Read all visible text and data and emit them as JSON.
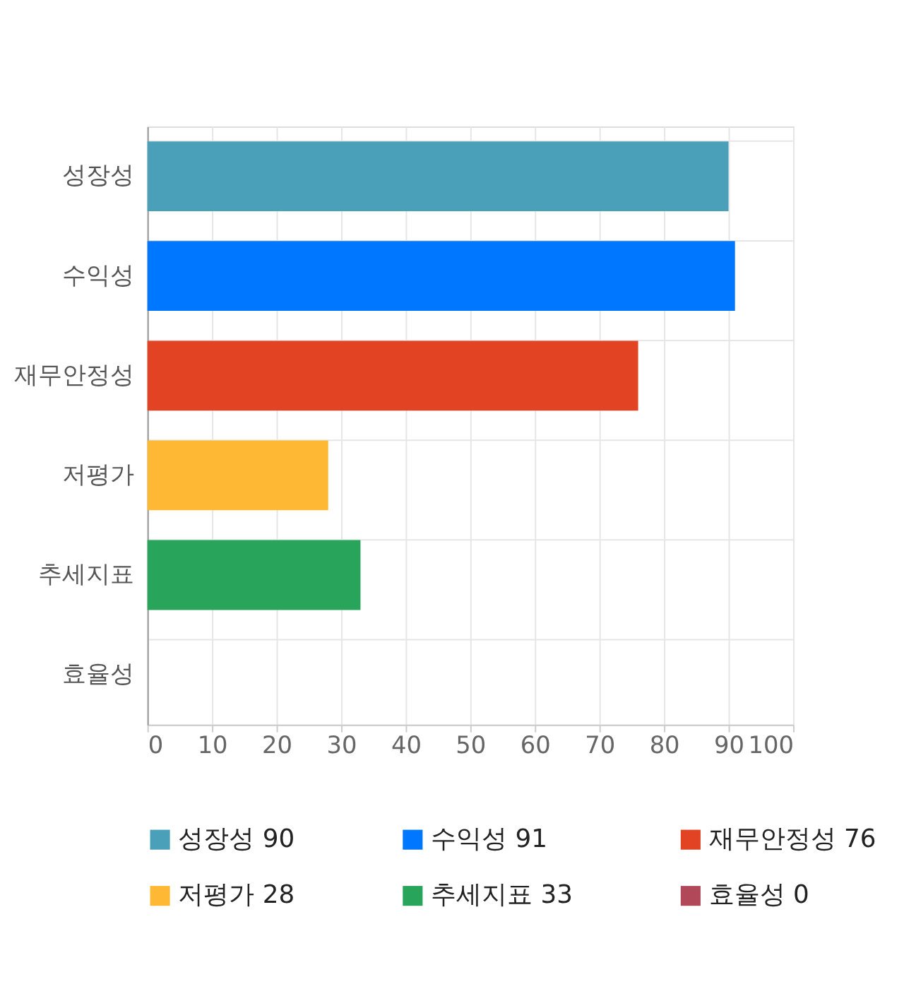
{
  "chart_data": {
    "type": "bar",
    "orientation": "horizontal",
    "categories": [
      "성장성",
      "수익성",
      "재무안정성",
      "저평가",
      "추세지표",
      "효율성"
    ],
    "series": [
      {
        "name": "성장성 90",
        "color": "#4aa0b8",
        "values": [
          90,
          null,
          null,
          null,
          null,
          null
        ]
      },
      {
        "name": "수익성 91",
        "color": "#0077ff",
        "values": [
          null,
          91,
          null,
          null,
          null,
          null
        ]
      },
      {
        "name": "재무안정성 76",
        "color": "#e24322",
        "values": [
          null,
          null,
          76,
          null,
          null,
          null
        ]
      },
      {
        "name": "저평가 28",
        "color": "#ffb833",
        "values": [
          null,
          null,
          null,
          28,
          null,
          null
        ]
      },
      {
        "name": "추세지표 33",
        "color": "#28a55a",
        "values": [
          null,
          null,
          null,
          null,
          33,
          null
        ]
      },
      {
        "name": "효율성 0",
        "color": "#b0485a",
        "values": [
          null,
          null,
          null,
          null,
          null,
          0
        ]
      }
    ],
    "xlim": [
      0,
      100
    ],
    "xticks": [
      0,
      10,
      20,
      30,
      40,
      50,
      60,
      70,
      80,
      90,
      100
    ],
    "grid": true,
    "legend": "bottom"
  }
}
